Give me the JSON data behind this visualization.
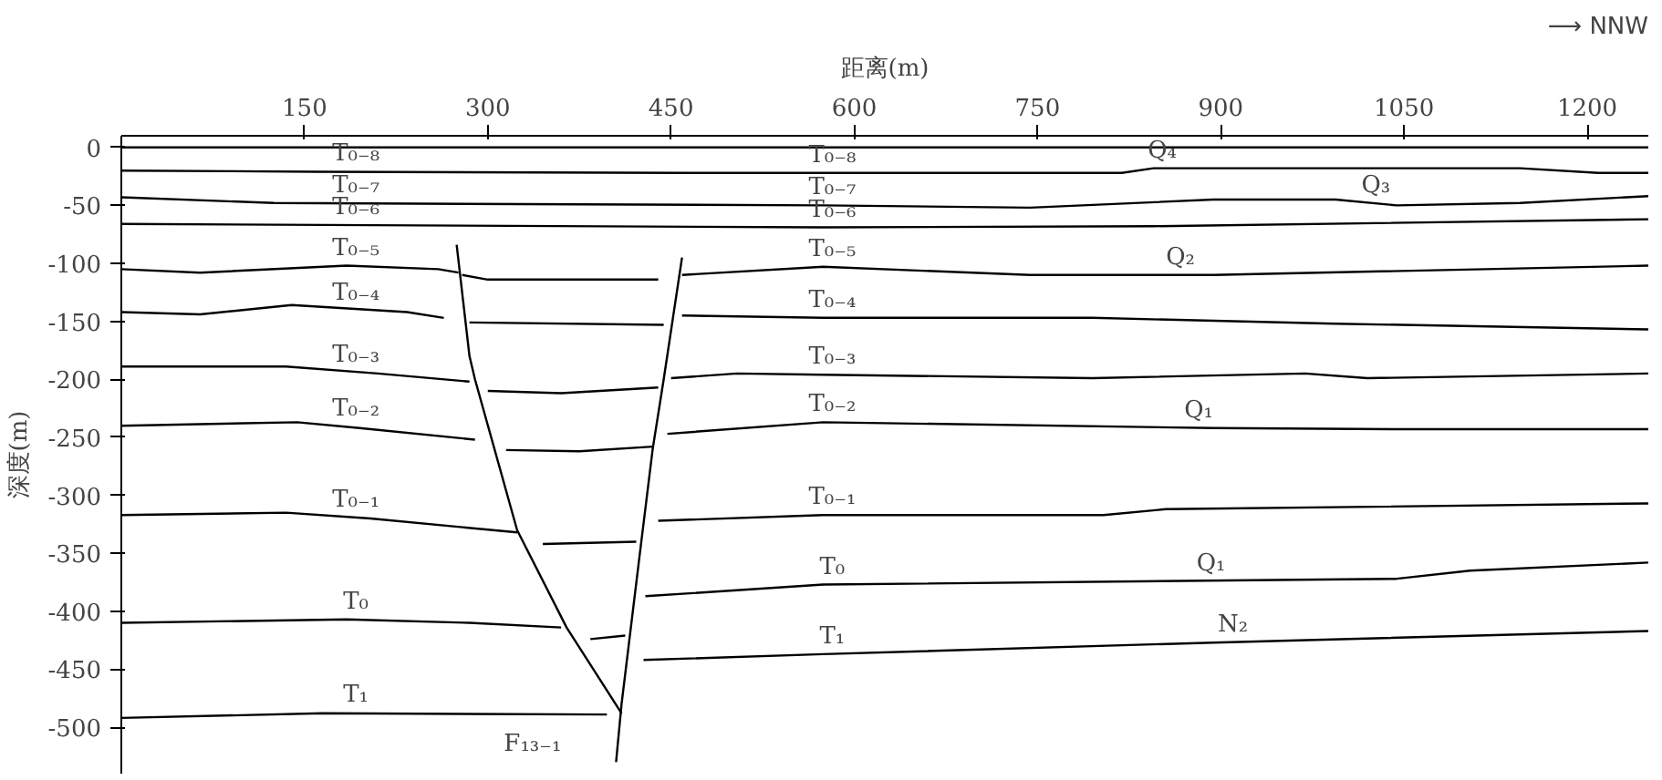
{
  "chart_data": {
    "type": "line",
    "xlabel": "距离(m)",
    "ylabel": "深度(m)",
    "xlim": [
      0,
      1250
    ],
    "ylim": [
      -540,
      10
    ],
    "xticks": [
      150,
      300,
      450,
      600,
      750,
      900,
      1050,
      1200
    ],
    "yticks": [
      0,
      -50,
      -100,
      -150,
      -200,
      -250,
      -300,
      -350,
      -400,
      -450,
      -500
    ],
    "grid": false,
    "series": [
      {
        "color": "#000000",
        "x": [
          0,
          1250
        ],
        "values": [
          0,
          0
        ]
      },
      {
        "color": "#000000",
        "x": [
          0,
          160,
          460,
          623,
          819,
          845,
          1145,
          1209,
          1250
        ],
        "values": [
          -20,
          -21,
          -22,
          -22,
          -22,
          -18,
          -18,
          -22,
          -22
        ]
      },
      {
        "color": "#000000",
        "x": [
          0,
          125,
          574,
          744,
          894,
          994,
          1044,
          1145,
          1250
        ],
        "values": [
          -43,
          -48,
          -50,
          -52,
          -45,
          -45,
          -50,
          -48,
          -42
        ]
      },
      {
        "color": "#000000",
        "x": [
          0,
          574,
          845,
          1250
        ],
        "values": [
          -66,
          -69,
          -68,
          -62
        ]
      },
      {
        "color": "#000000",
        "x": [
          0,
          64.5,
          184.5,
          259.5,
          276
        ],
        "values": [
          -105,
          -108,
          -102,
          -105,
          -108
        ]
      },
      {
        "color": "#000000",
        "x": [
          279,
          300,
          439.5
        ],
        "values": [
          -110,
          -114,
          -114
        ]
      },
      {
        "color": "#000000",
        "x": [
          459,
          574.5,
          744,
          894,
          1250
        ],
        "values": [
          -110,
          -103,
          -110,
          -110,
          -102
        ]
      },
      {
        "color": "#000000",
        "x": [
          0,
          64.5,
          139.5,
          234,
          264
        ],
        "values": [
          -142,
          -144,
          -136,
          -142,
          -147
        ]
      },
      {
        "color": "#000000",
        "x": [
          285,
          444
        ],
        "values": [
          -151,
          -153
        ]
      },
      {
        "color": "#000000",
        "x": [
          459,
          574.5,
          795,
          994,
          1250
        ],
        "values": [
          -145,
          -147,
          -147,
          -152,
          -157
        ]
      },
      {
        "color": "#000000",
        "x": [
          0,
          135,
          210,
          285
        ],
        "values": [
          -189,
          -189,
          -195,
          -202
        ]
      },
      {
        "color": "#000000",
        "x": [
          300,
          360,
          439.5
        ],
        "values": [
          -210,
          -212,
          -207
        ]
      },
      {
        "color": "#000000",
        "x": [
          450,
          504,
          574.5,
          795,
          969,
          1020,
          1250
        ],
        "values": [
          -199,
          -195,
          -196,
          -199,
          -195,
          -199,
          -195
        ]
      },
      {
        "color": "#000000",
        "x": [
          0,
          144,
          195,
          289.5
        ],
        "values": [
          -240,
          -237,
          -242,
          -252
        ]
      },
      {
        "color": "#000000",
        "x": [
          315,
          375,
          435
        ],
        "values": [
          -261,
          -262,
          -258
        ]
      },
      {
        "color": "#000000",
        "x": [
          447,
          574.5,
          894,
          1044,
          1250
        ],
        "values": [
          -247,
          -237,
          -242,
          -243,
          -243
        ]
      },
      {
        "color": "#000000",
        "x": [
          0,
          135,
          204,
          324
        ],
        "values": [
          -317,
          -315,
          -320,
          -332
        ]
      },
      {
        "color": "#000000",
        "x": [
          345,
          421.5
        ],
        "values": [
          -342,
          -340
        ]
      },
      {
        "color": "#000000",
        "x": [
          439.5,
          574.5,
          804,
          855,
          1250
        ],
        "values": [
          -322,
          -317,
          -317,
          -312,
          -307
        ]
      },
      {
        "color": "#000000",
        "x": [
          0,
          184.5,
          285,
          360
        ],
        "values": [
          -410,
          -407,
          -410,
          -414
        ]
      },
      {
        "color": "#000000",
        "x": [
          384,
          412.5
        ],
        "values": [
          -424,
          -421
        ]
      },
      {
        "color": "#000000",
        "x": [
          429,
          574.5,
          1044,
          1104,
          1250
        ],
        "values": [
          -387,
          -377,
          -372,
          -365,
          -358
        ]
      },
      {
        "color": "#000000",
        "x": [
          0,
          165,
          397.5
        ],
        "values": [
          -492,
          -488,
          -489
        ]
      },
      {
        "color": "#000000",
        "x": [
          427.5,
          574.5,
          894,
          1250
        ],
        "values": [
          -442,
          -437,
          -427,
          -417
        ]
      },
      {
        "color": "#000000",
        "x": [
          274.5,
          285,
          289.5,
          324,
          364.5,
          409.5
        ],
        "values": [
          -84,
          -180,
          -200,
          -330,
          -414,
          -488
        ]
      },
      {
        "color": "#000000",
        "x": [
          459,
          444,
          435,
          424.5,
          409.5,
          405
        ],
        "values": [
          -95,
          -200,
          -260,
          -350,
          -480,
          -530
        ]
      }
    ],
    "annotations": [
      {
        "text": "T₀₋₈",
        "x": 192,
        "y": -21
      },
      {
        "text": "T₀₋₇",
        "x": 192,
        "y": -48
      },
      {
        "text": "T₀₋₆",
        "x": 192,
        "y": -67
      },
      {
        "text": "T₀₋₅",
        "x": 192,
        "y": -102
      },
      {
        "text": "T₀₋₄",
        "x": 192,
        "y": -141
      },
      {
        "text": "T₀₋₃",
        "x": 192,
        "y": -194
      },
      {
        "text": "T₀₋₂",
        "x": 192,
        "y": -241
      },
      {
        "text": "T₀₋₁",
        "x": 192,
        "y": -319
      },
      {
        "text": "T₀",
        "x": 192,
        "y": -407
      },
      {
        "text": "T₁",
        "x": 192,
        "y": -487
      },
      {
        "text": "T₀₋₈",
        "x": 582,
        "y": -22
      },
      {
        "text": "T₀₋₇",
        "x": 582,
        "y": -50
      },
      {
        "text": "T₀₋₆",
        "x": 582,
        "y": -69
      },
      {
        "text": "T₀₋₅",
        "x": 582,
        "y": -103
      },
      {
        "text": "T₀₋₄",
        "x": 582,
        "y": -147
      },
      {
        "text": "T₀₋₃",
        "x": 582,
        "y": -196
      },
      {
        "text": "T₀₋₂",
        "x": 582,
        "y": -237
      },
      {
        "text": "T₀₋₁",
        "x": 582,
        "y": -317
      },
      {
        "text": "T₀",
        "x": 582,
        "y": -377
      },
      {
        "text": "T₁",
        "x": 582,
        "y": -437
      },
      {
        "text": "Q₄",
        "x": 852,
        "y": -18
      },
      {
        "text": "Q₃",
        "x": 1027,
        "y": -48
      },
      {
        "text": "Q₂",
        "x": 867,
        "y": -110
      },
      {
        "text": "Q₁",
        "x": 882,
        "y": -242
      },
      {
        "text": "Q₁",
        "x": 892,
        "y": -374
      },
      {
        "text": "N₂",
        "x": 910,
        "y": -427
      },
      {
        "text": "F₁₃₋₁",
        "x": 405,
        "y": -530
      },
      "⟶ NNW"
    ]
  }
}
